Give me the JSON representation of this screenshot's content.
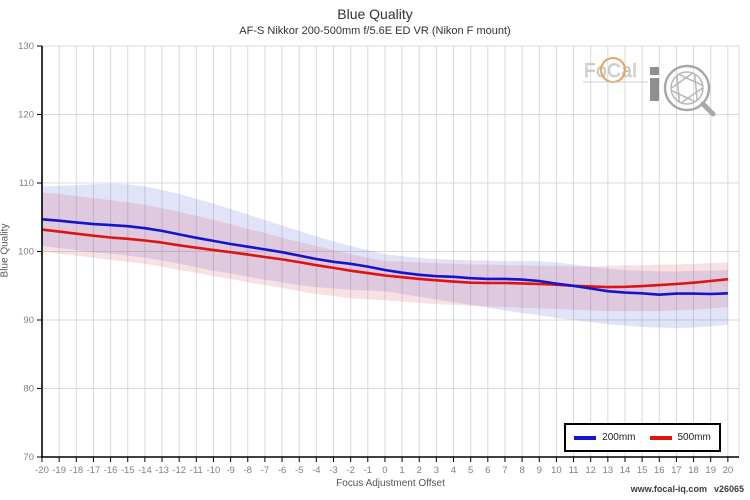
{
  "header": {
    "title": "Blue Quality",
    "subtitle": "AF-S Nikkor 200-500mm f/5.6E ED VR (Nikon F mount)"
  },
  "footer": {
    "url": "www.focal-iq.com",
    "version": "v26065"
  },
  "watermark": {
    "brand": "FoCal iQ",
    "wordmark": "FoCal"
  },
  "legend": {
    "items": [
      {
        "label": "200mm",
        "color": "#1414cd"
      },
      {
        "label": "500mm",
        "color": "#e01212"
      }
    ]
  },
  "chart_data": {
    "type": "line",
    "title": "Blue Quality",
    "subtitle": "AF-S Nikkor 200-500mm f/5.6E ED VR (Nikon F mount)",
    "xlabel": "Focus Adjustment Offset",
    "ylabel": "Blue Quality",
    "xlim": [
      -20,
      20.65
    ],
    "ylim": [
      70,
      130
    ],
    "xticks": [
      -20,
      -19,
      -18,
      -17,
      -16,
      -15,
      -14,
      -13,
      -12,
      -11,
      -10,
      -9,
      -8,
      -7,
      -6,
      -5,
      -4,
      -3,
      -2,
      -1,
      0,
      1,
      2,
      3,
      4,
      5,
      6,
      7,
      8,
      9,
      10,
      11,
      12,
      13,
      14,
      15,
      16,
      17,
      18,
      19,
      20
    ],
    "yticks": [
      70,
      80,
      90,
      100,
      110,
      120,
      130
    ],
    "grid": true,
    "legend_position": "bottom-right",
    "x": [
      -20,
      -19,
      -18,
      -17,
      -16,
      -15,
      -14,
      -13,
      -12,
      -11,
      -10,
      -9,
      -8,
      -7,
      -6,
      -5,
      -4,
      -3,
      -2,
      -1,
      0,
      1,
      2,
      3,
      4,
      5,
      6,
      7,
      8,
      9,
      10,
      11,
      12,
      13,
      14,
      15,
      16,
      17,
      18,
      19,
      20
    ],
    "series": [
      {
        "name": "200mm",
        "color": "#1414cd",
        "band_color": "rgba(70,90,220,0.16)",
        "values": [
          104.7,
          104.5,
          104.25,
          104.0,
          103.85,
          103.7,
          103.4,
          103.0,
          102.5,
          102.0,
          101.55,
          101.1,
          100.7,
          100.3,
          99.9,
          99.4,
          98.9,
          98.5,
          98.2,
          97.8,
          97.3,
          96.9,
          96.6,
          96.4,
          96.3,
          96.1,
          96.0,
          96.0,
          95.9,
          95.7,
          95.3,
          95.0,
          94.6,
          94.2,
          94.0,
          93.9,
          93.7,
          93.85,
          93.85,
          93.8,
          93.9
        ],
        "band_upper": [
          109.5,
          109.6,
          109.7,
          109.8,
          109.9,
          109.8,
          109.5,
          109.0,
          108.4,
          107.7,
          107.0,
          106.2,
          105.4,
          104.6,
          103.8,
          103.0,
          102.2,
          101.5,
          100.8,
          100.2,
          99.6,
          99.3,
          99.1,
          98.9,
          98.8,
          98.7,
          98.7,
          98.6,
          98.6,
          98.6,
          98.4,
          98.1,
          97.8,
          97.5,
          97.3,
          97.2,
          97.1,
          97.1,
          97.2,
          97.2,
          97.3
        ],
        "band_lower": [
          100.8,
          100.5,
          100.2,
          99.9,
          99.7,
          99.4,
          99.1,
          98.7,
          98.2,
          97.7,
          97.2,
          96.8,
          96.3,
          95.9,
          95.5,
          95.1,
          94.8,
          94.6,
          94.4,
          94.3,
          94.2,
          93.8,
          93.4,
          93.0,
          92.6,
          92.2,
          91.8,
          91.4,
          91.0,
          90.7,
          90.3,
          90.0,
          89.7,
          89.4,
          89.2,
          89.0,
          88.9,
          88.8,
          88.9,
          89.1,
          89.3
        ]
      },
      {
        "name": "500mm",
        "color": "#e01212",
        "band_color": "rgba(220,60,80,0.16)",
        "values": [
          103.2,
          102.9,
          102.6,
          102.3,
          102.05,
          101.85,
          101.6,
          101.3,
          100.9,
          100.55,
          100.2,
          99.9,
          99.55,
          99.2,
          98.85,
          98.45,
          98.0,
          97.6,
          97.2,
          96.85,
          96.5,
          96.25,
          96.0,
          95.8,
          95.6,
          95.45,
          95.4,
          95.4,
          95.35,
          95.25,
          95.15,
          95.0,
          94.9,
          94.8,
          94.85,
          94.95,
          95.1,
          95.25,
          95.45,
          95.7,
          95.95
        ],
        "band_upper": [
          108.6,
          108.4,
          108.1,
          107.8,
          107.5,
          107.2,
          106.8,
          106.3,
          105.8,
          105.2,
          104.6,
          104.0,
          103.3,
          102.7,
          102.0,
          101.4,
          100.8,
          100.2,
          99.6,
          99.1,
          98.6,
          98.5,
          98.4,
          98.3,
          98.2,
          98.1,
          98.1,
          98.0,
          98.0,
          97.9,
          97.9,
          97.8,
          97.8,
          97.9,
          98.0,
          98.0,
          98.1,
          98.1,
          98.2,
          98.3,
          98.4
        ],
        "band_lower": [
          100.0,
          99.7,
          99.4,
          99.1,
          98.8,
          98.5,
          98.2,
          97.8,
          97.3,
          96.9,
          96.4,
          96.0,
          95.5,
          95.1,
          94.7,
          94.2,
          93.8,
          93.5,
          93.2,
          93.0,
          92.9,
          92.7,
          92.5,
          92.3,
          92.2,
          92.1,
          92.0,
          91.9,
          91.8,
          91.7,
          91.6,
          91.5,
          91.4,
          91.3,
          91.3,
          91.3,
          91.3,
          91.4,
          91.5,
          91.7,
          91.9
        ]
      }
    ],
    "colors": {
      "grid": "#d9d9d9",
      "axis": "#000000",
      "tick_label": "#808080",
      "axis_title": "#555555",
      "title": "#333333",
      "watermark_orange": "#e6a55e",
      "watermark_gray": "#a8a8a8"
    }
  }
}
